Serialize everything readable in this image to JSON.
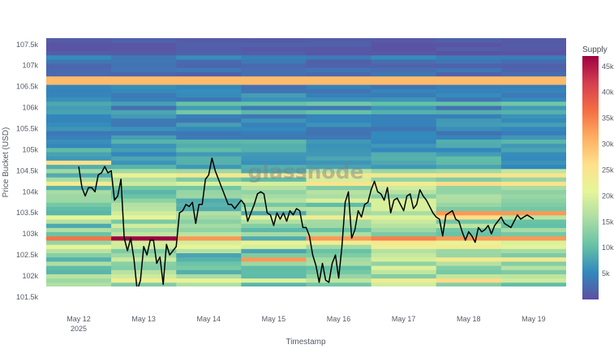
{
  "chart_data": {
    "type": "heatmap",
    "title": "",
    "xlabel": "Timestamp",
    "ylabel": "Price Bucket (USD)",
    "watermark": "glassnode",
    "x_ticks": [
      {
        "label": "May 12",
        "sublabel": "2025",
        "day": 12
      },
      {
        "label": "May 13",
        "day": 13
      },
      {
        "label": "May 14",
        "day": 14
      },
      {
        "label": "May 15",
        "day": 15
      },
      {
        "label": "May 16",
        "day": 16
      },
      {
        "label": "May 17",
        "day": 17
      },
      {
        "label": "May 18",
        "day": 18
      },
      {
        "label": "May 19",
        "day": 19
      }
    ],
    "y_ticks": [
      {
        "label": "101.5k",
        "value": 101500
      },
      {
        "label": "102k",
        "value": 102000
      },
      {
        "label": "102.5k",
        "value": 102500
      },
      {
        "label": "103k",
        "value": 103000
      },
      {
        "label": "103.5k",
        "value": 103500
      },
      {
        "label": "104k",
        "value": 104000
      },
      {
        "label": "104.5k",
        "value": 104500
      },
      {
        "label": "105k",
        "value": 105000
      },
      {
        "label": "105.5k",
        "value": 105500
      },
      {
        "label": "106k",
        "value": 106000
      },
      {
        "label": "106.5k",
        "value": 106500
      },
      {
        "label": "107k",
        "value": 107000
      },
      {
        "label": "107.5k",
        "value": 107500
      }
    ],
    "xlim_days": [
      11.5,
      19.5
    ],
    "ylim": [
      101750,
      107650
    ],
    "bucket_size": 100,
    "colorbar": {
      "title": "Supply",
      "range": [
        0,
        47000
      ],
      "ticks": [
        {
          "label": "5k",
          "value": 5000
        },
        {
          "label": "10k",
          "value": 10000
        },
        {
          "label": "15k",
          "value": 15000
        },
        {
          "label": "20k",
          "value": 20000
        },
        {
          "label": "25k",
          "value": 25000
        },
        {
          "label": "30k",
          "value": 30000
        },
        {
          "label": "35k",
          "value": 35000
        },
        {
          "label": "40k",
          "value": 40000
        },
        {
          "label": "45k",
          "value": 45000
        }
      ],
      "colorscale": [
        "#5e4fa2",
        "#3288bd",
        "#66c2a5",
        "#abdda4",
        "#e6f598",
        "#fee08b",
        "#fdae61",
        "#f46d43",
        "#d53e4f",
        "#9e0142"
      ]
    },
    "heatmap_columns": [
      {
        "day": 12,
        "highlights": [
          {
            "price": 104700,
            "supply": 26000
          },
          {
            "price": 102900,
            "supply": 36000
          }
        ]
      },
      {
        "day": 13,
        "highlights": [
          {
            "price": 104400,
            "supply": 22000
          },
          {
            "price": 102900,
            "supply": 47000
          }
        ]
      },
      {
        "day": 14,
        "highlights": [
          {
            "price": 104400,
            "supply": 24000
          },
          {
            "price": 102900,
            "supply": 33000
          }
        ]
      },
      {
        "day": 15,
        "highlights": [
          {
            "price": 104400,
            "supply": 24000
          },
          {
            "price": 102400,
            "supply": 33000
          }
        ]
      },
      {
        "day": 16,
        "highlights": [
          {
            "price": 104400,
            "supply": 24000
          },
          {
            "price": 102900,
            "supply": 33000
          }
        ]
      },
      {
        "day": 17,
        "highlights": [
          {
            "price": 104400,
            "supply": 24000
          },
          {
            "price": 102900,
            "supply": 35000
          }
        ]
      },
      {
        "day": 18,
        "highlights": [
          {
            "price": 104400,
            "supply": 25000
          },
          {
            "price": 103500,
            "supply": 33000
          },
          {
            "price": 102900,
            "supply": 33000
          },
          {
            "price": 102400,
            "supply": 24000
          }
        ]
      },
      {
        "day": 19,
        "highlights": [
          {
            "price": 104400,
            "supply": 25000
          },
          {
            "price": 103500,
            "supply": 33000
          },
          {
            "price": 102900,
            "supply": 33000
          },
          {
            "price": 102400,
            "supply": 24000
          }
        ]
      }
    ],
    "series": [
      {
        "type": "line",
        "color": "#000000",
        "x_days": [
          12.0,
          12.05,
          12.1,
          12.15,
          12.2,
          12.25,
          12.3,
          12.35,
          12.4,
          12.45,
          12.5,
          12.55,
          12.6,
          12.65,
          12.7,
          12.75,
          12.8,
          12.85,
          12.9,
          12.95,
          13.0,
          13.05,
          13.1,
          13.15,
          13.2,
          13.25,
          13.3,
          13.35,
          13.4,
          13.45,
          13.5,
          13.55,
          13.6,
          13.65,
          13.7,
          13.75,
          13.8,
          13.85,
          13.9,
          13.95,
          14.0,
          14.05,
          14.1,
          14.15,
          14.2,
          14.25,
          14.3,
          14.35,
          14.4,
          14.45,
          14.5,
          14.55,
          14.6,
          14.65,
          14.7,
          14.75,
          14.8,
          14.85,
          14.9,
          14.95,
          15.0,
          15.05,
          15.1,
          15.15,
          15.2,
          15.25,
          15.3,
          15.35,
          15.4,
          15.45,
          15.5,
          15.55,
          15.6,
          15.65,
          15.7,
          15.75,
          15.8,
          15.85,
          15.9,
          15.95,
          16.0,
          16.05,
          16.1,
          16.15,
          16.2,
          16.25,
          16.3,
          16.35,
          16.4,
          16.45,
          16.5,
          16.55,
          16.6,
          16.65,
          16.7,
          16.75,
          16.8,
          16.85,
          16.9,
          16.95,
          17.0,
          17.05,
          17.1,
          17.15,
          17.2,
          17.25,
          17.3,
          17.35,
          17.4,
          17.45,
          17.5,
          17.55,
          17.6,
          17.65,
          17.7,
          17.75,
          17.8,
          17.85,
          17.9,
          17.95,
          18.0,
          18.05,
          18.1,
          18.15,
          18.2,
          18.25,
          18.3,
          18.35,
          18.4,
          18.45,
          18.5,
          18.55,
          18.6,
          18.65,
          18.7,
          18.75,
          18.8,
          18.85,
          18.9,
          18.95,
          19.0
        ],
        "y": [
          104600,
          104100,
          103900,
          104100,
          104100,
          104000,
          104400,
          104450,
          104600,
          104450,
          104500,
          103800,
          103900,
          104300,
          102900,
          102600,
          102900,
          102400,
          101650,
          101900,
          102700,
          102500,
          102850,
          102850,
          102300,
          102450,
          101800,
          102750,
          102500,
          102600,
          102700,
          103500,
          103550,
          103700,
          103650,
          103750,
          103250,
          103700,
          103700,
          104300,
          104400,
          104800,
          104500,
          104300,
          104100,
          103900,
          103700,
          103700,
          103600,
          103700,
          103800,
          103700,
          103300,
          103500,
          103700,
          103950,
          104000,
          103950,
          103500,
          103450,
          103200,
          103500,
          103350,
          103500,
          103300,
          103550,
          103450,
          103600,
          103550,
          103150,
          103150,
          102950,
          102500,
          102250,
          101850,
          102300,
          101900,
          101850,
          102300,
          102500,
          101950,
          102700,
          103750,
          104000,
          102900,
          103100,
          103550,
          103400,
          103700,
          103750,
          104050,
          104250,
          104000,
          103950,
          103800,
          104100,
          103500,
          103800,
          103850,
          103700,
          103550,
          103900,
          103950,
          103600,
          103700,
          104050,
          103900,
          103800,
          103650,
          103500,
          103400,
          103350,
          102950,
          103450,
          103500,
          103550,
          103350,
          103300,
          103050,
          102850,
          103050,
          102950,
          102800,
          103150,
          103050,
          103100,
          103200,
          103000,
          103200,
          103300,
          103400,
          103250,
          103200,
          103150,
          103300,
          103450,
          103350,
          103400,
          103450,
          103400,
          103350
        ]
      }
    ]
  }
}
